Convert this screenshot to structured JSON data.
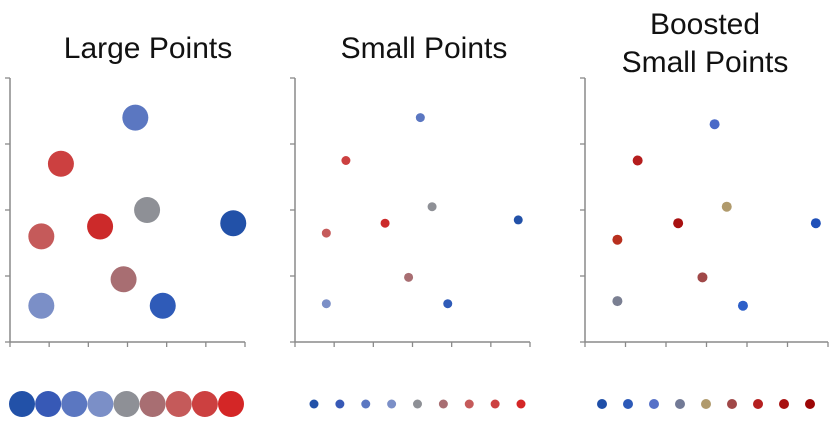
{
  "chart_data": [
    {
      "type": "scatter",
      "title": "Large Points",
      "xlim": [
        0,
        6
      ],
      "ylim": [
        0,
        4
      ],
      "grid": false,
      "points": [
        {
          "x": 3.2,
          "y": 3.4,
          "color": "#5b77c1"
        },
        {
          "x": 1.3,
          "y": 2.7,
          "color": "#cc4040"
        },
        {
          "x": 3.5,
          "y": 2.0,
          "color": "#8e9096"
        },
        {
          "x": 5.7,
          "y": 1.8,
          "color": "#2251a8"
        },
        {
          "x": 0.8,
          "y": 1.6,
          "color": "#c55a5a"
        },
        {
          "x": 2.3,
          "y": 1.75,
          "color": "#cc2a2a"
        },
        {
          "x": 2.9,
          "y": 0.95,
          "color": "#a86e72"
        },
        {
          "x": 0.8,
          "y": 0.55,
          "color": "#7b8fc7"
        },
        {
          "x": 3.9,
          "y": 0.55,
          "color": "#2f5bb8"
        }
      ],
      "palette": [
        "#2251a8",
        "#3759b6",
        "#5b77c1",
        "#7b8fc7",
        "#8e9096",
        "#a86e72",
        "#c55a5a",
        "#cc4040",
        "#d42626"
      ]
    },
    {
      "type": "scatter",
      "title": "Small Points",
      "xlim": [
        0,
        6
      ],
      "ylim": [
        0,
        4
      ],
      "grid": false,
      "points": [
        {
          "x": 3.2,
          "y": 3.4,
          "color": "#5b77c1"
        },
        {
          "x": 1.3,
          "y": 2.75,
          "color": "#cc4040"
        },
        {
          "x": 3.5,
          "y": 2.05,
          "color": "#8e9096"
        },
        {
          "x": 5.7,
          "y": 1.85,
          "color": "#2251a8"
        },
        {
          "x": 0.8,
          "y": 1.65,
          "color": "#c55a5a"
        },
        {
          "x": 2.3,
          "y": 1.8,
          "color": "#cc2a2a"
        },
        {
          "x": 2.9,
          "y": 0.98,
          "color": "#a86e72"
        },
        {
          "x": 0.8,
          "y": 0.58,
          "color": "#7b8fc7"
        },
        {
          "x": 3.9,
          "y": 0.58,
          "color": "#2f5bb8"
        }
      ],
      "palette": [
        "#2251a8",
        "#3759b6",
        "#5b77c1",
        "#7b8fc7",
        "#8e9096",
        "#a86e72",
        "#c55a5a",
        "#cc4040",
        "#d42626"
      ]
    },
    {
      "type": "scatter",
      "title": "Boosted Small Points",
      "xlim": [
        0,
        6
      ],
      "ylim": [
        0,
        4
      ],
      "grid": false,
      "points": [
        {
          "x": 3.2,
          "y": 3.3,
          "color": "#4a6ac8"
        },
        {
          "x": 1.3,
          "y": 2.75,
          "color": "#b51d1d"
        },
        {
          "x": 3.5,
          "y": 2.05,
          "color": "#b09a6c"
        },
        {
          "x": 5.7,
          "y": 1.8,
          "color": "#1e4fb8"
        },
        {
          "x": 0.8,
          "y": 1.55,
          "color": "#b8301e"
        },
        {
          "x": 2.3,
          "y": 1.8,
          "color": "#a81010"
        },
        {
          "x": 2.9,
          "y": 0.98,
          "color": "#a04848"
        },
        {
          "x": 0.8,
          "y": 0.62,
          "color": "#7a7f92"
        },
        {
          "x": 3.9,
          "y": 0.55,
          "color": "#2d5fc8"
        }
      ],
      "palette": [
        "#1f4fa8",
        "#2d5ab8",
        "#5570c8",
        "#727a96",
        "#b09a6c",
        "#a04848",
        "#b52020",
        "#a81010",
        "#9c0606"
      ]
    }
  ]
}
